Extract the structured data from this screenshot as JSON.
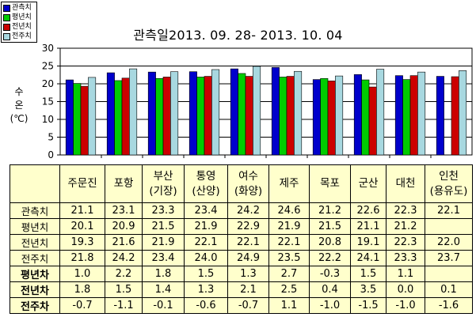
{
  "chart_data": {
    "type": "bar",
    "title": "관측일2013. 09. 28-  2013. 10. 04",
    "ylabel_lines": [
      "수",
      "온",
      "(℃)"
    ],
    "ylim": [
      0,
      30
    ],
    "yticks": [
      "0",
      "5",
      "10",
      "15",
      "20",
      "25",
      "30"
    ],
    "grid": "horizontal",
    "legend_position": "top-left",
    "categories": [
      "주문진",
      "포항",
      "부산\n(기장)",
      "통영\n(산양)",
      "여수\n(화양)",
      "제주",
      "목포",
      "군산",
      "대천",
      "인천\n(용유도)"
    ],
    "series": [
      {
        "name": "관측치",
        "color": "#0000cc",
        "values": [
          21.1,
          23.1,
          23.3,
          23.4,
          24.2,
          24.6,
          21.2,
          22.6,
          22.3,
          22.1
        ]
      },
      {
        "name": "평년치",
        "color": "#00cc00",
        "values": [
          20.1,
          20.9,
          21.5,
          21.9,
          22.9,
          21.9,
          21.5,
          21.1,
          21.2,
          null
        ]
      },
      {
        "name": "전년치",
        "color": "#cc0000",
        "values": [
          19.3,
          21.6,
          21.9,
          22.1,
          22.1,
          22.1,
          20.8,
          19.1,
          22.3,
          22.0
        ]
      },
      {
        "name": "전주치",
        "color": "#a8d8e0",
        "values": [
          21.8,
          24.2,
          23.4,
          24.0,
          24.9,
          23.5,
          22.2,
          24.1,
          23.3,
          23.7
        ]
      }
    ]
  },
  "table": {
    "header_lines": [
      [
        "주문진"
      ],
      [
        "포항"
      ],
      [
        "부산",
        "(기장)"
      ],
      [
        "통영",
        "(산양)"
      ],
      [
        "여수",
        "(화양)"
      ],
      [
        "제주"
      ],
      [
        "목포"
      ],
      [
        "군산"
      ],
      [
        "대천"
      ],
      [
        "인천",
        "(용유도)"
      ]
    ],
    "rows": [
      {
        "label": "관측치",
        "kind": "value",
        "cells": [
          "21.1",
          "23.1",
          "23.3",
          "23.4",
          "24.2",
          "24.6",
          "21.2",
          "22.6",
          "22.3",
          "22.1"
        ]
      },
      {
        "label": "평년치",
        "kind": "value",
        "cells": [
          "20.1",
          "20.9",
          "21.5",
          "21.9",
          "22.9",
          "21.9",
          "21.5",
          "21.1",
          "21.2",
          ""
        ]
      },
      {
        "label": "전년치",
        "kind": "value",
        "cells": [
          "19.3",
          "21.6",
          "21.9",
          "22.1",
          "22.1",
          "22.1",
          "20.8",
          "19.1",
          "22.3",
          "22.0"
        ]
      },
      {
        "label": "전주치",
        "kind": "value",
        "cells": [
          "21.8",
          "24.2",
          "23.4",
          "24.0",
          "24.9",
          "23.5",
          "22.2",
          "24.1",
          "23.3",
          "23.7"
        ]
      },
      {
        "label": "평년차",
        "kind": "diff",
        "cells": [
          "1.0",
          "2.2",
          "1.8",
          "1.5",
          "1.3",
          "2.7",
          "-0.3",
          "1.5",
          "1.1",
          ""
        ]
      },
      {
        "label": "전년차",
        "kind": "diff",
        "cells": [
          "1.8",
          "1.5",
          "1.4",
          "1.3",
          "2.1",
          "2.5",
          "0.4",
          "3.5",
          "0.0",
          "0.1"
        ]
      },
      {
        "label": "전주차",
        "kind": "diff",
        "cells": [
          "-0.7",
          "-1.1",
          "-0.1",
          "-0.6",
          "-0.7",
          "1.1",
          "-1.0",
          "-1.5",
          "-1.0",
          "-1.6"
        ]
      }
    ]
  }
}
